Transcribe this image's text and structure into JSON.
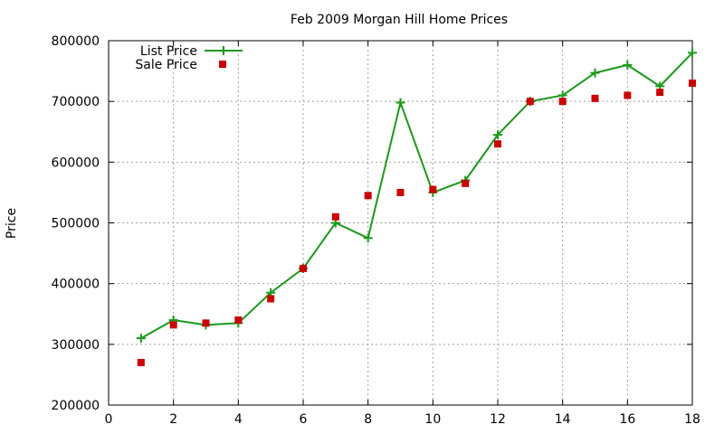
{
  "chart_data": {
    "type": "line",
    "title": "Feb 2009 Morgan Hill Home Prices",
    "xlabel": "",
    "ylabel": "Price",
    "xlim": [
      0,
      18
    ],
    "ylim": [
      200000,
      800000
    ],
    "xticks": [
      0,
      2,
      4,
      6,
      8,
      10,
      12,
      14,
      16,
      18
    ],
    "yticks": [
      200000,
      300000,
      400000,
      500000,
      600000,
      700000,
      800000
    ],
    "grid": true,
    "legend_position": "top-left",
    "series": [
      {
        "name": "List Price",
        "style": "lines+points",
        "marker": "plus",
        "color": "#1a9a1a",
        "x": [
          1,
          2,
          3,
          4,
          5,
          6,
          7,
          8,
          9,
          10,
          11,
          12,
          13,
          14,
          15,
          16,
          17,
          18
        ],
        "values": [
          310000,
          340000,
          332000,
          335000,
          385000,
          425000,
          500000,
          475000,
          698000,
          550000,
          570000,
          645000,
          700000,
          710000,
          747000,
          760000,
          725000,
          780000
        ]
      },
      {
        "name": "Sale Price",
        "style": "points",
        "marker": "square",
        "color": "#cc0000",
        "x": [
          1,
          2,
          3,
          4,
          5,
          6,
          7,
          8,
          9,
          10,
          11,
          12,
          13,
          14,
          15,
          16,
          17,
          18
        ],
        "values": [
          270000,
          332000,
          335000,
          340000,
          375000,
          425000,
          510000,
          545000,
          550000,
          555000,
          565000,
          630000,
          700000,
          700000,
          705000,
          710000,
          715000,
          730000
        ]
      }
    ]
  }
}
